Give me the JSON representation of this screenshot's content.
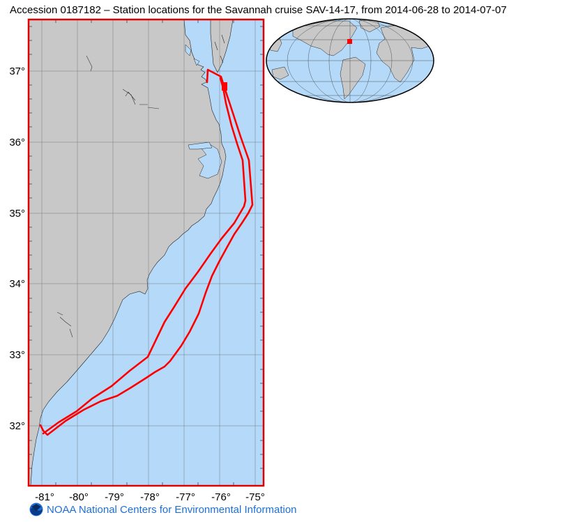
{
  "title": "Accession 0187182 – Station locations for the Savannah cruise SAV-14-17, from 2014-06-28 to 2014-07-07",
  "footer": {
    "org": "NOAA National Centers for Environmental Information",
    "logo": "noaa-logo"
  },
  "map": {
    "lon_range": [
      -81.4,
      -74.9
    ],
    "lat_range": [
      31.1,
      37.7
    ],
    "lat_labels": [
      "37°",
      "36°",
      "35°",
      "34°",
      "33°",
      "32°"
    ],
    "lon_labels": [
      "-81°",
      "-80°",
      "-79°",
      "-78°",
      "-77°",
      "-76°",
      "-75°"
    ],
    "ocean_color": "#b5d9f8",
    "land_color": "#c8c8c8",
    "track_color": "#ff0000"
  },
  "inset": {
    "projection": "world overview",
    "marker_color": "#ff0000"
  }
}
